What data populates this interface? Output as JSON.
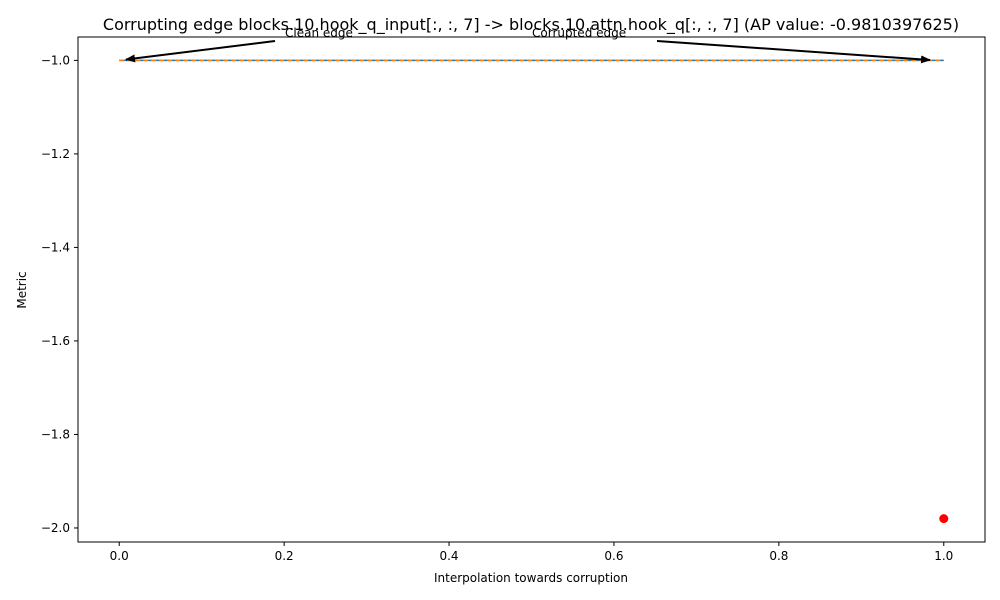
{
  "chart_data": {
    "type": "line",
    "title": "Corrupting edge blocks.10.hook_q_input[:, :, 7] -> blocks.10.attn.hook_q[:, :, 7] (AP value: -0.9810397625)",
    "xlabel": "Interpolation towards corruption",
    "ylabel": "Metric",
    "xlim": [
      -0.05,
      1.05
    ],
    "ylim": [
      -2.03,
      -0.95
    ],
    "xticks": [
      0.0,
      0.2,
      0.4,
      0.6,
      0.8,
      1.0
    ],
    "xtick_labels": [
      "0.0",
      "0.2",
      "0.4",
      "0.6",
      "0.8",
      "1.0"
    ],
    "yticks": [
      -1.0,
      -1.2,
      -1.4,
      -1.6,
      -1.8,
      -2.0
    ],
    "ytick_labels": [
      "−1.0",
      "−1.2",
      "−1.4",
      "−1.6",
      "−1.8",
      "−2.0"
    ],
    "grid": false,
    "series": [
      {
        "x": [
          0.0,
          1.0
        ],
        "y": [
          -1.0,
          -1.0
        ],
        "color": "#1f77b4",
        "style": "solid"
      },
      {
        "x": [
          0.0,
          1.0
        ],
        "y": [
          -1.0,
          -1.0
        ],
        "color": "#ff7f0e",
        "style": "dashed"
      },
      {
        "x": [
          1.0
        ],
        "y": [
          -1.98
        ],
        "color": "#ff0000",
        "style": "point"
      }
    ],
    "annotations": [
      {
        "text": "Clean edge",
        "target": [
          0.0,
          -1.0
        ]
      },
      {
        "text": "Corrupted edge",
        "target": [
          1.0,
          -1.0
        ]
      }
    ]
  }
}
